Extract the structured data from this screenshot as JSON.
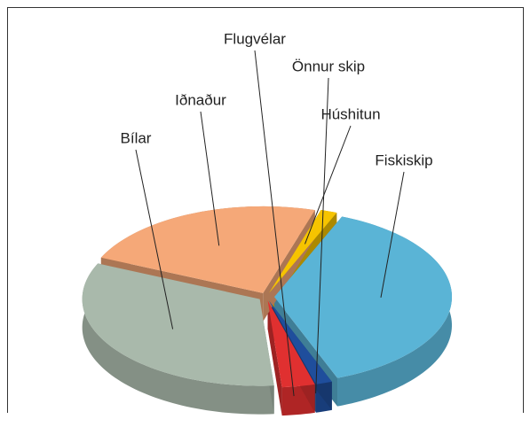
{
  "chart_data": {
    "type": "pie",
    "categories": [
      "Húshitun",
      "Fiskiskip",
      "Önnur skip",
      "Flugvélar",
      "Bílar",
      "Iðnaður"
    ],
    "values": [
      1.5,
      38,
      1.5,
      3,
      33,
      23
    ],
    "colors": [
      "#f6c400",
      "#5ab4d6",
      "#1f4e9c",
      "#e03030",
      "#a9b9ab",
      "#f5a878"
    ]
  }
}
